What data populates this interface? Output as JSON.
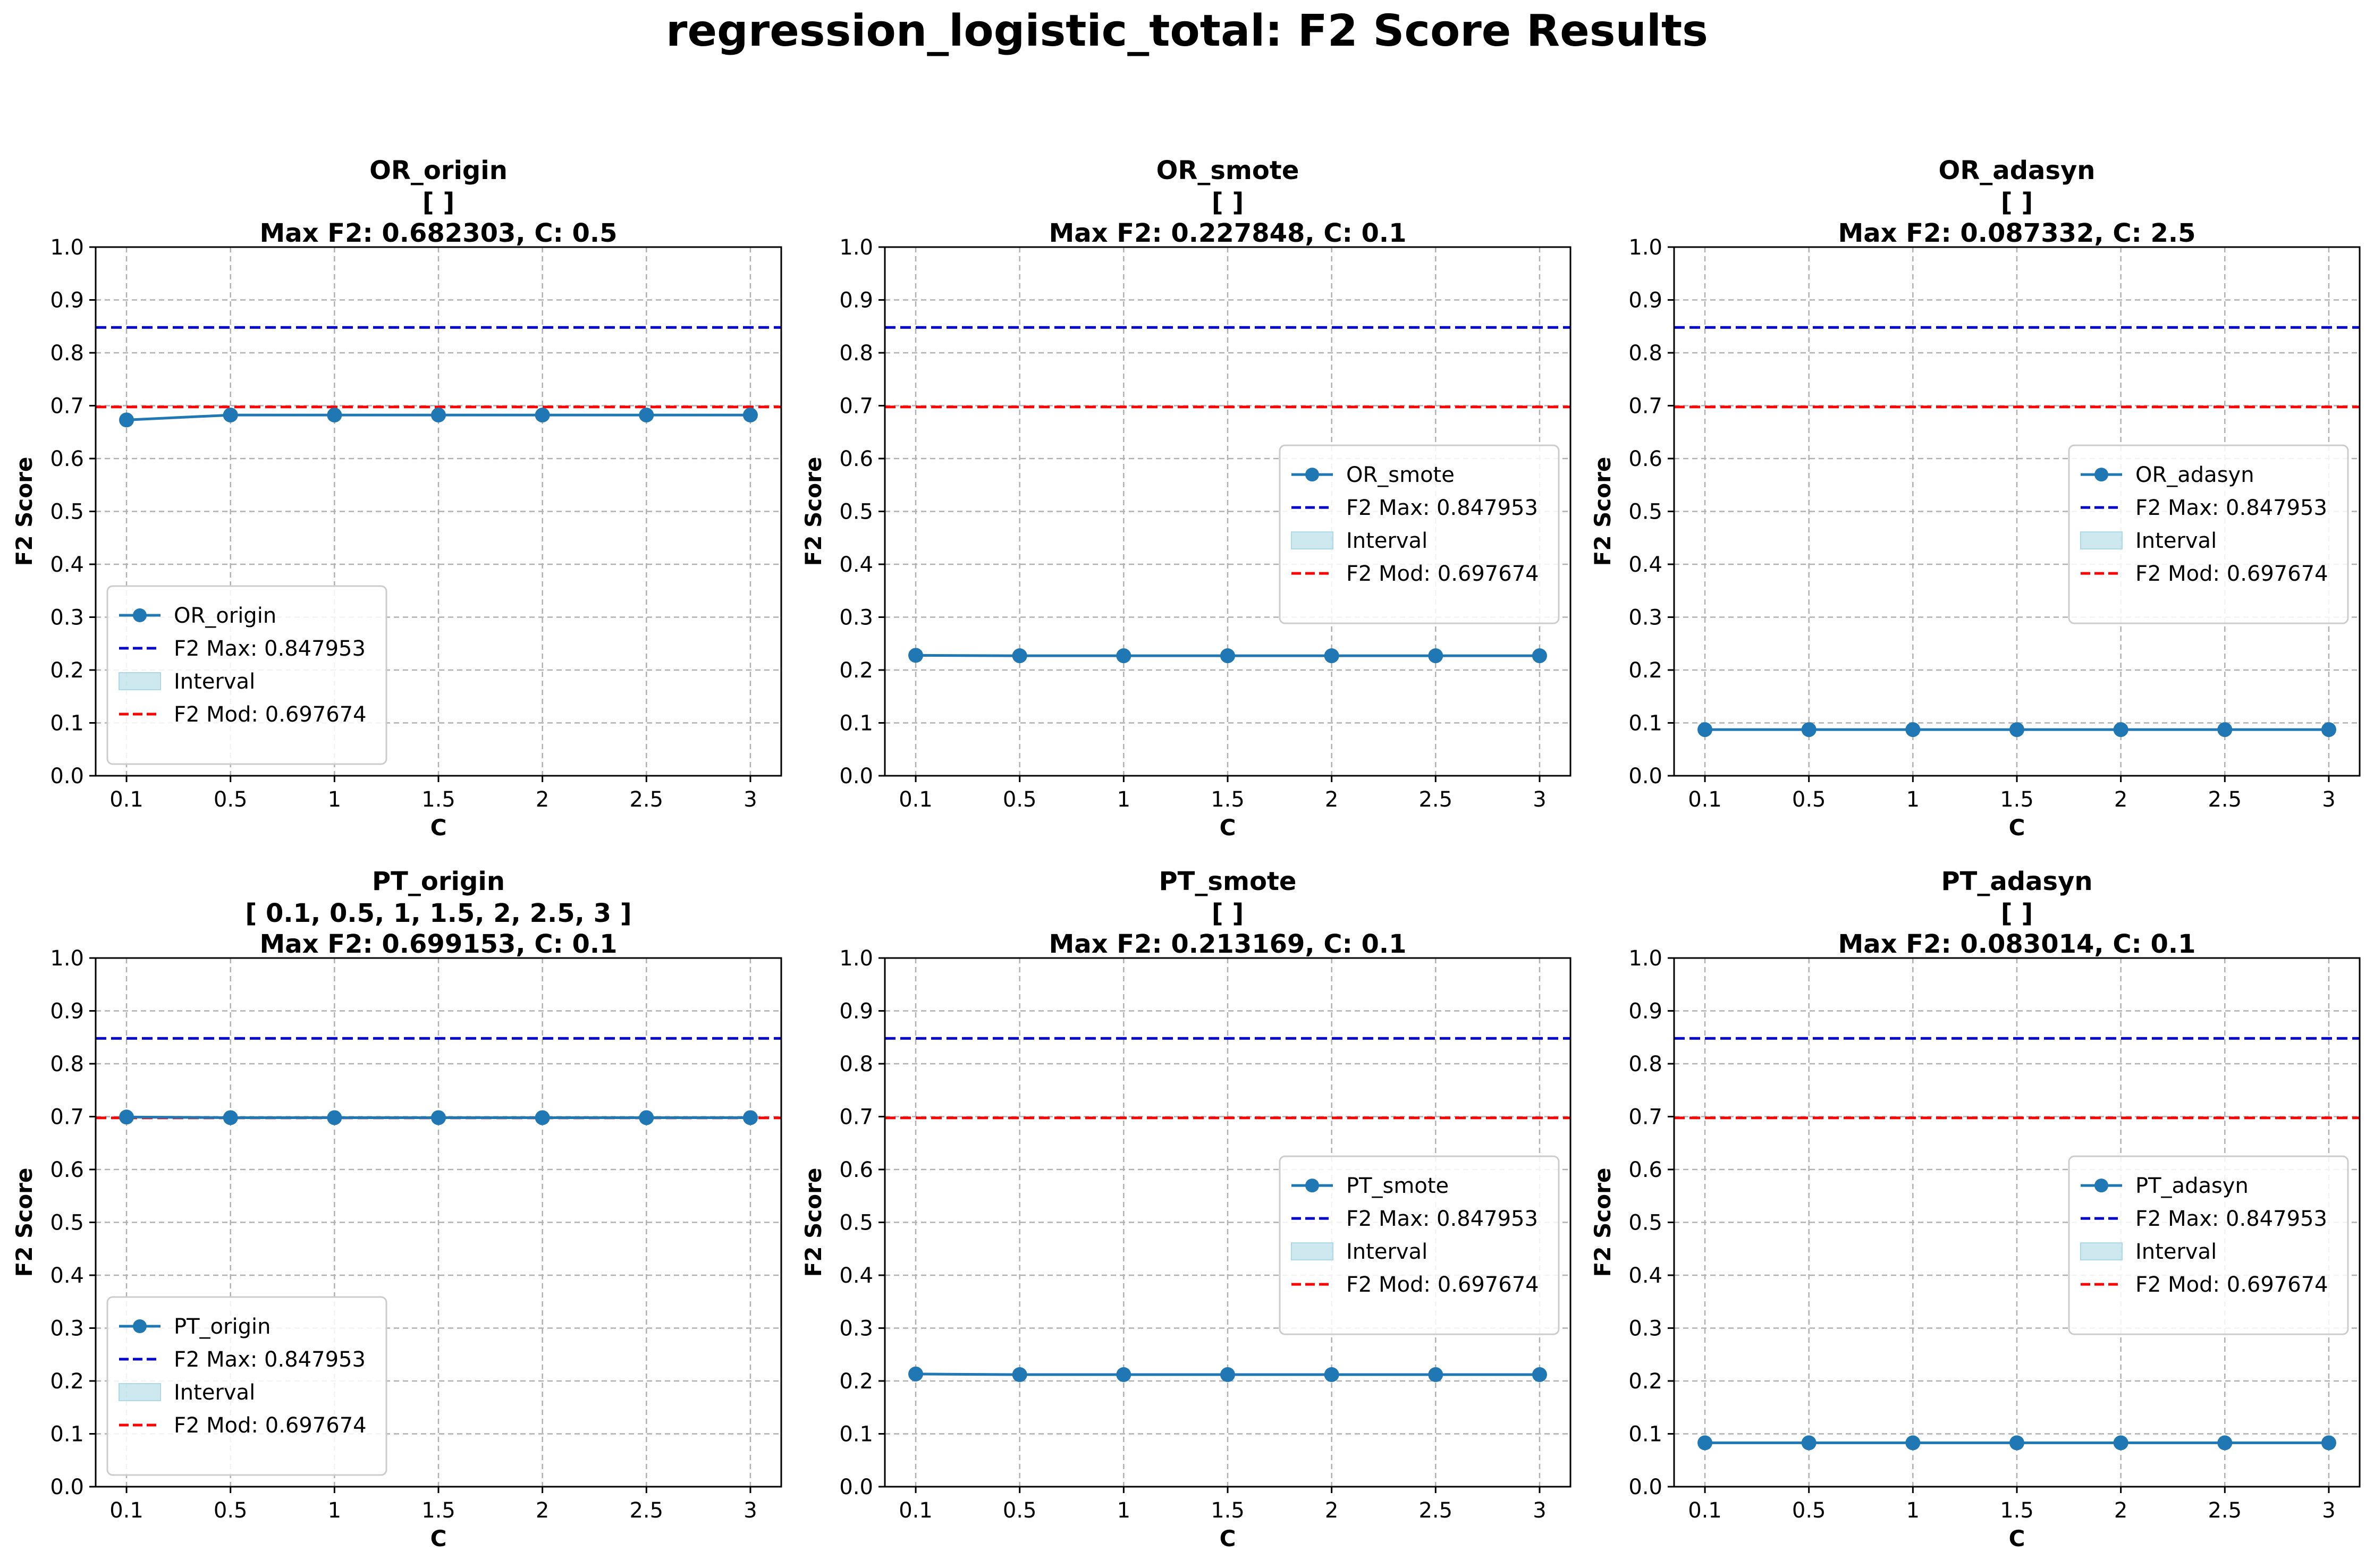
{
  "figure": {
    "title": "regression_logistic_total: F2 Score Results"
  },
  "colors": {
    "series": "#1f77b4",
    "f2_max": "#0000cc",
    "f2_mod": "#ff0000",
    "interval_fill": "#add8e6",
    "grid": "#b0b0b0"
  },
  "chart_data": [
    {
      "type": "line",
      "title_lines": [
        "OR_origin",
        "[  ]",
        "Max F2: 0.682303, C: 0.5"
      ],
      "xlabel": "C",
      "ylabel": "F2 Score",
      "x": [
        "0.1",
        "0.5",
        "1",
        "1.5",
        "2",
        "2.5",
        "3"
      ],
      "series": [
        {
          "name": "OR_origin",
          "values": [
            0.673,
            0.6823,
            0.6823,
            0.6823,
            0.6823,
            0.6823,
            0.6823
          ]
        }
      ],
      "ylim": [
        0.0,
        1.0
      ],
      "yticks": [
        "0.0",
        "0.1",
        "0.2",
        "0.3",
        "0.4",
        "0.5",
        "0.6",
        "0.7",
        "0.8",
        "0.9",
        "1.0"
      ],
      "f2_max": 0.847953,
      "f2_mod": 0.697674,
      "legend": [
        "OR_origin",
        "F2 Max: 0.847953",
        "Interval",
        "F2 Mod: 0.697674"
      ],
      "legend_position": "lower-left",
      "grid": true
    },
    {
      "type": "line",
      "title_lines": [
        "OR_smote",
        "[  ]",
        "Max F2: 0.227848, C: 0.1"
      ],
      "xlabel": "C",
      "ylabel": "F2 Score",
      "x": [
        "0.1",
        "0.5",
        "1",
        "1.5",
        "2",
        "2.5",
        "3"
      ],
      "series": [
        {
          "name": "OR_smote",
          "values": [
            0.2278,
            0.227,
            0.227,
            0.227,
            0.227,
            0.227,
            0.227
          ]
        }
      ],
      "ylim": [
        0.0,
        1.0
      ],
      "yticks": [
        "0.0",
        "0.1",
        "0.2",
        "0.3",
        "0.4",
        "0.5",
        "0.6",
        "0.7",
        "0.8",
        "0.9",
        "1.0"
      ],
      "f2_max": 0.847953,
      "f2_mod": 0.697674,
      "legend": [
        "OR_smote",
        "F2 Max: 0.847953",
        "Interval",
        "F2 Mod: 0.697674"
      ],
      "legend_position": "center-right",
      "grid": true
    },
    {
      "type": "line",
      "title_lines": [
        "OR_adasyn",
        "[  ]",
        "Max F2: 0.087332, C: 2.5"
      ],
      "xlabel": "C",
      "ylabel": "F2 Score",
      "x": [
        "0.1",
        "0.5",
        "1",
        "1.5",
        "2",
        "2.5",
        "3"
      ],
      "series": [
        {
          "name": "OR_adasyn",
          "values": [
            0.0873,
            0.0873,
            0.0873,
            0.0873,
            0.0873,
            0.0873,
            0.0873
          ]
        }
      ],
      "ylim": [
        0.0,
        1.0
      ],
      "yticks": [
        "0.0",
        "0.1",
        "0.2",
        "0.3",
        "0.4",
        "0.5",
        "0.6",
        "0.7",
        "0.8",
        "0.9",
        "1.0"
      ],
      "f2_max": 0.847953,
      "f2_mod": 0.697674,
      "legend": [
        "OR_adasyn",
        "F2 Max: 0.847953",
        "Interval",
        "F2 Mod: 0.697674"
      ],
      "legend_position": "center-right",
      "grid": true
    },
    {
      "type": "line",
      "title_lines": [
        "PT_origin",
        "[ 0.1, 0.5, 1, 1.5, 2, 2.5, 3 ]",
        "Max F2: 0.699153, C: 0.1"
      ],
      "xlabel": "C",
      "ylabel": "F2 Score",
      "x": [
        "0.1",
        "0.5",
        "1",
        "1.5",
        "2",
        "2.5",
        "3"
      ],
      "series": [
        {
          "name": "PT_origin",
          "values": [
            0.6992,
            0.698,
            0.698,
            0.698,
            0.698,
            0.698,
            0.698
          ]
        }
      ],
      "ylim": [
        0.0,
        1.0
      ],
      "yticks": [
        "0.0",
        "0.1",
        "0.2",
        "0.3",
        "0.4",
        "0.5",
        "0.6",
        "0.7",
        "0.8",
        "0.9",
        "1.0"
      ],
      "f2_max": 0.847953,
      "f2_mod": 0.697674,
      "legend": [
        "PT_origin",
        "F2 Max: 0.847953",
        "Interval",
        "F2 Mod: 0.697674"
      ],
      "legend_position": "lower-left",
      "grid": true
    },
    {
      "type": "line",
      "title_lines": [
        "PT_smote",
        "[  ]",
        "Max F2: 0.213169, C: 0.1"
      ],
      "xlabel": "C",
      "ylabel": "F2 Score",
      "x": [
        "0.1",
        "0.5",
        "1",
        "1.5",
        "2",
        "2.5",
        "3"
      ],
      "series": [
        {
          "name": "PT_smote",
          "values": [
            0.2132,
            0.212,
            0.212,
            0.212,
            0.212,
            0.212,
            0.212
          ]
        }
      ],
      "ylim": [
        0.0,
        1.0
      ],
      "yticks": [
        "0.0",
        "0.1",
        "0.2",
        "0.3",
        "0.4",
        "0.5",
        "0.6",
        "0.7",
        "0.8",
        "0.9",
        "1.0"
      ],
      "f2_max": 0.847953,
      "f2_mod": 0.697674,
      "legend": [
        "PT_smote",
        "F2 Max: 0.847953",
        "Interval",
        "F2 Mod: 0.697674"
      ],
      "legend_position": "center-right",
      "grid": true
    },
    {
      "type": "line",
      "title_lines": [
        "PT_adasyn",
        "[  ]",
        "Max F2: 0.083014, C: 0.1"
      ],
      "xlabel": "C",
      "ylabel": "F2 Score",
      "x": [
        "0.1",
        "0.5",
        "1",
        "1.5",
        "2",
        "2.5",
        "3"
      ],
      "series": [
        {
          "name": "PT_adasyn",
          "values": [
            0.083,
            0.083,
            0.083,
            0.083,
            0.083,
            0.083,
            0.083
          ]
        }
      ],
      "ylim": [
        0.0,
        1.0
      ],
      "yticks": [
        "0.0",
        "0.1",
        "0.2",
        "0.3",
        "0.4",
        "0.5",
        "0.6",
        "0.7",
        "0.8",
        "0.9",
        "1.0"
      ],
      "f2_max": 0.847953,
      "f2_mod": 0.697674,
      "legend": [
        "PT_adasyn",
        "F2 Max: 0.847953",
        "Interval",
        "F2 Mod: 0.697674"
      ],
      "legend_position": "center-right",
      "grid": true
    }
  ]
}
